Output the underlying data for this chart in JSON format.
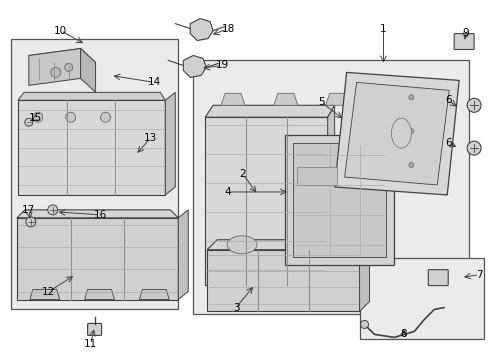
{
  "bg": "#ffffff",
  "box_bg": "#ebebeb",
  "line_col": "#404040",
  "seat_fill": "#e0e0e0",
  "seat_dark": "#c8c8c8",
  "seat_line": "#606060",
  "fs_label": 7.5,
  "fs_num": 7.5
}
